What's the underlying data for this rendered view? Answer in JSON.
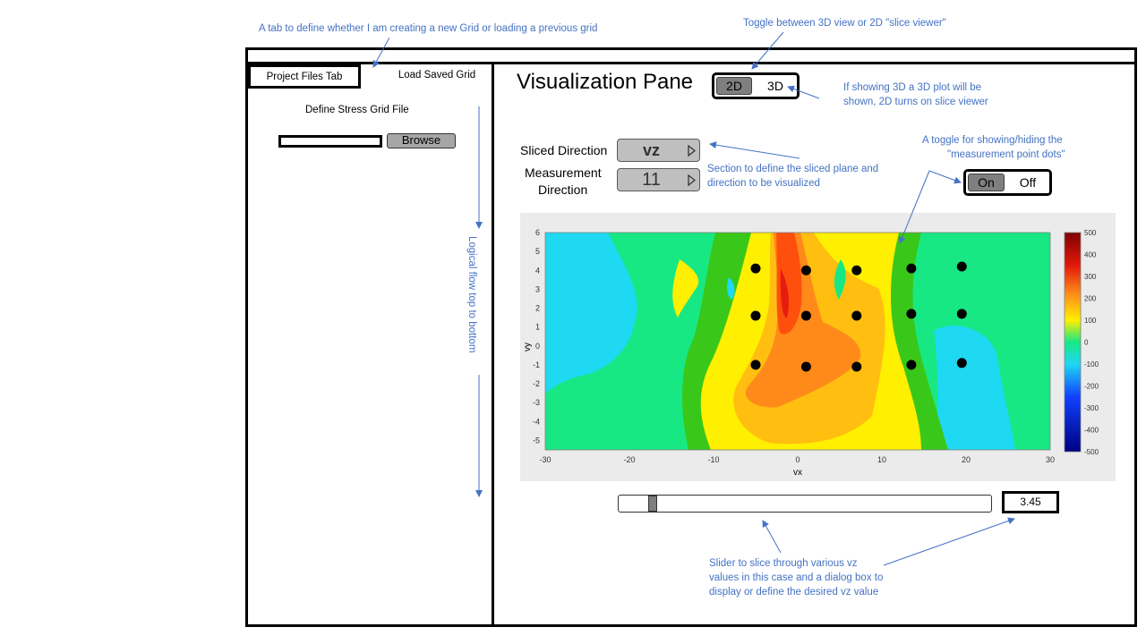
{
  "annotations": {
    "tab_note": "A tab to define whether  I am creating a new Grid or loading a previous grid",
    "toggle_note": "Toggle between  3D view or 2D \"slice viewer\"",
    "view_note_1": "If showing 3D a 3D plot will be",
    "view_note_2": "shown, 2D turns on slice viewer",
    "dots_note_1": "A toggle for showing/hiding the",
    "dots_note_2": "\"measurement point dots\"",
    "slice_note_1": "Section to define the sliced plane and",
    "slice_note_2": "direction to be visualized",
    "slider_note_1": "Slider to slice through various vz",
    "slider_note_2": "values in this case and a dialog box to",
    "slider_note_3": "display or define the  desired vz value",
    "flow_note": "Logical flow top to bottom"
  },
  "left_panel": {
    "tabs": [
      "Project Files Tab",
      "Load Saved Grid"
    ],
    "define_label": "Define Stress Grid File",
    "file_path": "",
    "browse_label": "Browse"
  },
  "main": {
    "title": "Visualization Pane",
    "view_toggle": {
      "options": [
        "2D",
        "3D"
      ],
      "selected": "2D"
    },
    "sliced_direction": {
      "label": "Sliced Direction",
      "value": "vz"
    },
    "measurement_direction": {
      "label_1": "Measurement",
      "label_2": "Direction",
      "value": "11"
    },
    "dots_toggle": {
      "options": [
        "On",
        "Off"
      ],
      "selected": "On"
    },
    "slider": {
      "value_text": "3.45",
      "position_fraction": 0.065
    }
  },
  "colors": {
    "note": "#4472c4",
    "frame": "#000000",
    "plot_bg": "#ebebeb"
  },
  "chart_data": {
    "type": "contour",
    "xlabel": "vx",
    "ylabel": "vy",
    "xlim": [
      -30,
      30
    ],
    "ylim": [
      -5.5,
      6
    ],
    "x_ticks": [
      -30,
      -20,
      -10,
      0,
      10,
      20,
      30
    ],
    "y_ticks": [
      6,
      5,
      4,
      3,
      2,
      1,
      0,
      -1,
      -2,
      -3,
      -4,
      -5
    ],
    "colorbar": {
      "range": [
        -500,
        500
      ],
      "ticks": [
        500,
        400,
        300,
        200,
        100,
        0,
        -100,
        -200,
        -300,
        -400,
        -500
      ]
    },
    "measurement_points": [
      {
        "x": -5,
        "y": 4.1
      },
      {
        "x": 1,
        "y": 4.0
      },
      {
        "x": 7,
        "y": 4.0
      },
      {
        "x": 13.5,
        "y": 4.1
      },
      {
        "x": 19.5,
        "y": 4.2
      },
      {
        "x": -5,
        "y": 1.6
      },
      {
        "x": 1,
        "y": 1.6
      },
      {
        "x": 7,
        "y": 1.6
      },
      {
        "x": 13.5,
        "y": 1.7
      },
      {
        "x": 19.5,
        "y": 1.7
      },
      {
        "x": -5,
        "y": -1.0
      },
      {
        "x": 1,
        "y": -1.1
      },
      {
        "x": 7,
        "y": -1.1
      },
      {
        "x": 13.5,
        "y": -1.0
      },
      {
        "x": 19.5,
        "y": -0.9
      }
    ]
  }
}
